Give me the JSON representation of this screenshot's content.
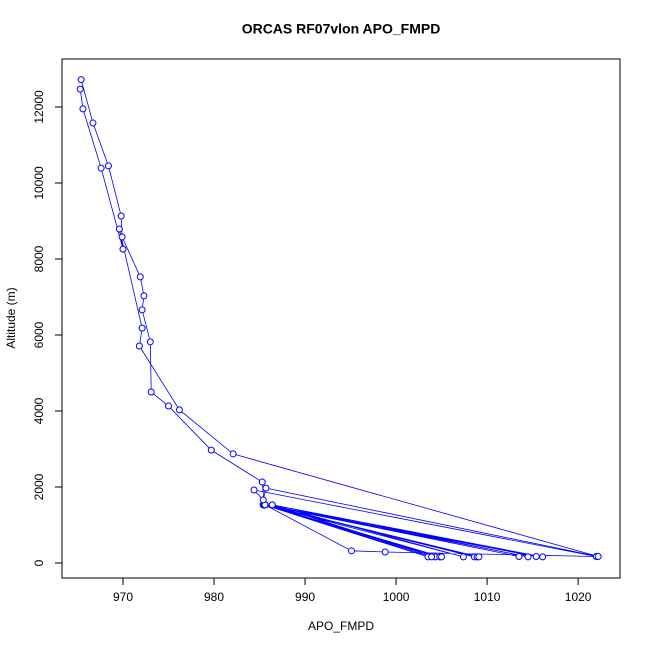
{
  "chart_data": {
    "type": "line",
    "title": "ORCAS RF07vlon APO_FMPD",
    "x_label": "APO_FMPD",
    "y_label": "Altitude (m)",
    "color": "#0000ff",
    "markers": true,
    "x": [
      965.4,
      966.7,
      968.4,
      969.8,
      969.9,
      971.9,
      972.3,
      972.1,
      973.0,
      973.1,
      975.0,
      979.7,
      985.3,
      985.5,
      1003.5,
      985.6,
      1004.3,
      986.4,
      1007.4,
      985.5,
      1008.6,
      985.6,
      1013.5,
      985.5,
      1014.5,
      986.4,
      1016.1,
      985.6,
      1015.4,
      985.5,
      1008.9,
      985.6,
      1009.1,
      985.4,
      1004.8,
      985.5,
      1003.9,
      985.5,
      1005.0,
      985.6,
      995.1,
      998.8,
      1022.0,
      984.4,
      985.4,
      985.7,
      1022.2,
      982.1,
      976.2,
      971.8,
      972.1,
      969.6,
      970.0,
      967.6,
      965.6,
      965.3
    ],
    "y": [
      12720,
      11580,
      10450,
      9130,
      8580,
      7530,
      7030,
      6660,
      5820,
      4500,
      4130,
      2970,
      2130,
      1530,
      160,
      1530,
      160,
      1530,
      160,
      1530,
      160,
      1530,
      170,
      1530,
      160,
      1530,
      160,
      1530,
      170,
      1530,
      160,
      1530,
      160,
      1530,
      160,
      1530,
      160,
      1530,
      160,
      1530,
      320,
      290,
      170,
      1920,
      1660,
      1970,
      170,
      2870,
      4030,
      5710,
      6180,
      8790,
      8260,
      10390,
      11950,
      12470
    ],
    "xlim": [
      963.3,
      1024.6
    ],
    "ylim": [
      -395,
      13263
    ],
    "xticks": [
      970,
      980,
      990,
      1000,
      1010,
      1020
    ],
    "yticks": [
      0,
      2000,
      4000,
      6000,
      8000,
      10000,
      12000
    ]
  }
}
